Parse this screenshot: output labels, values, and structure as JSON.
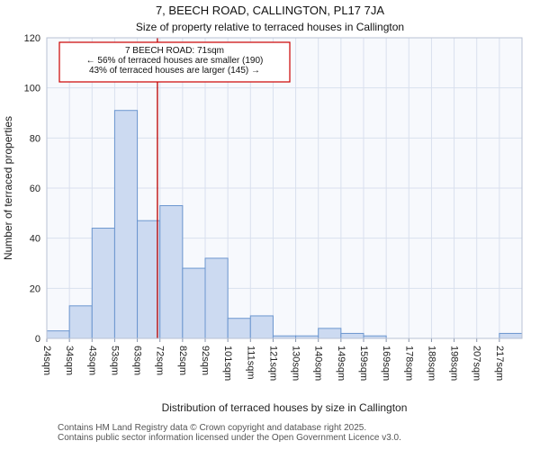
{
  "title": "7, BEECH ROAD, CALLINGTON, PL17 7JA",
  "subtitle": "Size of property relative to terraced houses in Callington",
  "chart_data": {
    "type": "bar",
    "categories": [
      "24sqm",
      "34sqm",
      "43sqm",
      "53sqm",
      "63sqm",
      "72sqm",
      "82sqm",
      "92sqm",
      "101sqm",
      "111sqm",
      "121sqm",
      "130sqm",
      "140sqm",
      "149sqm",
      "159sqm",
      "169sqm",
      "178sqm",
      "188sqm",
      "198sqm",
      "207sqm",
      "217sqm"
    ],
    "values": [
      3,
      13,
      44,
      91,
      47,
      53,
      28,
      32,
      8,
      9,
      1,
      1,
      4,
      2,
      1,
      0,
      0,
      0,
      0,
      0,
      2
    ],
    "title": "7, BEECH ROAD, CALLINGTON, PL17 7JA",
    "subtitle": "Size of property relative to terraced houses in Callington",
    "xlabel": "Distribution of terraced houses by size in Callington",
    "ylabel": "Number of terraced properties",
    "ylim": [
      0,
      120
    ],
    "yticks": [
      0,
      20,
      40,
      60,
      80,
      100,
      120
    ],
    "grid": true,
    "legend": "none",
    "bar_fill": "#ccdaf1",
    "bar_stroke": "#6b96cf",
    "marker": {
      "value_sqm": 71,
      "color": "#bb0000"
    },
    "annotation": {
      "line1": "7 BEECH ROAD: 71sqm",
      "line2": "← 56% of terraced houses are smaller (190)",
      "line3": "43% of terraced houses are larger (145) →",
      "border_color": "#cc0000"
    }
  },
  "footer": {
    "line1": "Contains HM Land Registry data © Crown copyright and database right 2025.",
    "line2": "Contains public sector information licensed under the Open Government Licence v3.0."
  }
}
